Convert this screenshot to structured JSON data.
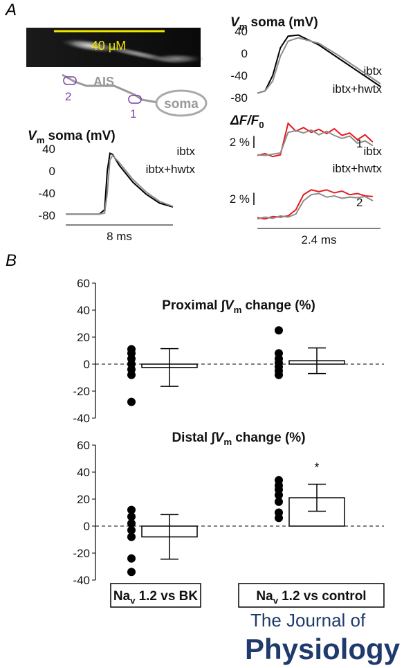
{
  "panel_labels": [
    "A",
    "B"
  ],
  "image": {
    "scale_label": "40 μM"
  },
  "diagram": {
    "region": "AIS",
    "sites": [
      "2",
      "1"
    ],
    "soma": "soma"
  },
  "chart_data": [
    {
      "type": "line",
      "title": {
        "symbol": "V",
        "subscript": "m",
        "text": "soma (mV)"
      },
      "x": [
        0,
        2.5,
        2.9,
        3.1,
        3.3,
        3.5,
        4,
        5,
        6,
        7,
        8
      ],
      "series": [
        {
          "name": "ibtx",
          "color": "#000000",
          "values": [
            -78,
            -78,
            -70,
            0,
            32,
            30,
            10,
            -20,
            -42,
            -58,
            -65
          ]
        },
        {
          "name": "ibtx+hwtx",
          "color": "#8c8c8c",
          "values": [
            -78,
            -78,
            -76,
            -40,
            20,
            28,
            15,
            -15,
            -38,
            -55,
            -64
          ]
        }
      ],
      "xlim": [
        0,
        8
      ],
      "ylim": [
        -80,
        40
      ],
      "yticks": [
        40,
        0,
        -40,
        -80
      ],
      "xscale": {
        "value": 8,
        "label": "8 ms"
      }
    },
    {
      "type": "line",
      "title": {
        "symbol": "V",
        "subscript": "m",
        "text": "soma (mV)"
      },
      "x": [
        0,
        0.15,
        0.3,
        0.45,
        0.6,
        0.8,
        1.2,
        1.6,
        2.0,
        2.4
      ],
      "series": [
        {
          "name": "ibtx",
          "color": "#000000",
          "values": [
            -72,
            -68,
            -40,
            10,
            31,
            33,
            15,
            -10,
            -35,
            -60
          ]
        },
        {
          "name": "ibtx+hwtx",
          "color": "#8c8c8c",
          "values": [
            -72,
            -68,
            -50,
            -5,
            22,
            28,
            18,
            -5,
            -30,
            -55
          ]
        }
      ],
      "xlim": [
        0,
        2.4
      ],
      "ylim": [
        -80,
        40
      ],
      "yticks": [
        40,
        0,
        -40,
        -80
      ]
    },
    {
      "type": "line",
      "ylabel": {
        "text": "ΔF/F",
        "subscript": "0"
      },
      "x": [
        0,
        0.15,
        0.3,
        0.45,
        0.6,
        0.75,
        0.9,
        1.05,
        1.2,
        1.35,
        1.5,
        1.65,
        1.8,
        1.95,
        2.1,
        2.25
      ],
      "series": [
        {
          "name": "ibtx",
          "color": "#e8191e",
          "values": [
            0.2,
            0.5,
            0.0,
            0.3,
            5.5,
            4.2,
            4.8,
            4.0,
            4.5,
            3.8,
            4.6,
            3.5,
            3.9,
            2.8,
            3.6,
            2.4
          ]
        },
        {
          "name": "ibtx+hwtx",
          "color": "#8c8c8c",
          "values": [
            0.3,
            0.2,
            0.4,
            0.6,
            4.0,
            4.3,
            3.9,
            4.4,
            3.6,
            4.2,
            3.5,
            3.0,
            3.4,
            2.2,
            2.6,
            1.8
          ]
        }
      ],
      "xlim": [
        0,
        2.4
      ],
      "ylim": [
        -1,
        7
      ],
      "scalebar": {
        "value": 2,
        "label": "2 %"
      },
      "site": "1"
    },
    {
      "type": "line",
      "x": [
        0,
        0.15,
        0.3,
        0.45,
        0.6,
        0.75,
        0.9,
        1.05,
        1.2,
        1.35,
        1.5,
        1.65,
        1.8,
        1.95,
        2.1,
        2.25
      ],
      "series": [
        {
          "color": "#e8191e",
          "values": [
            0.2,
            0.0,
            0.4,
            0.3,
            0.5,
            1.5,
            4.0,
            4.8,
            4.5,
            4.8,
            4.3,
            4.6,
            4.0,
            4.2,
            3.8,
            3.7
          ]
        },
        {
          "color": "#8c8c8c",
          "values": [
            0.0,
            0.3,
            0.1,
            0.5,
            0.3,
            0.8,
            3.0,
            4.0,
            4.2,
            3.6,
            3.8,
            3.4,
            3.6,
            3.5,
            3.7,
            3.0
          ]
        }
      ],
      "xlim": [
        0,
        2.4
      ],
      "ylim": [
        -1,
        7
      ],
      "scalebar": {
        "value": 2,
        "label": "2 %"
      },
      "site": "2",
      "xscale": {
        "value": 2.4,
        "label": "2.4 ms"
      }
    },
    {
      "type": "bar",
      "title": {
        "prefix": "Proximal ∫",
        "symbol": "V",
        "subscript": "m",
        "text": "change (%)"
      },
      "categories": [
        null,
        null
      ],
      "values": [
        -2.5,
        2.5
      ],
      "errors": [
        14,
        9.5
      ],
      "points": [
        [
          11,
          8,
          4,
          0,
          -4,
          -8,
          -28
        ],
        [
          25,
          8,
          4,
          1,
          -2,
          -5,
          -8
        ]
      ],
      "ylim": [
        -40,
        60
      ],
      "yticks": [
        -40,
        -20,
        0,
        20,
        40,
        60
      ]
    },
    {
      "type": "bar",
      "title": {
        "prefix": "Distal ∫",
        "symbol": "V",
        "subscript": "m",
        "text": "change (%)"
      },
      "categories": [
        {
          "prefix": "Na",
          "subscript": "v",
          "text": "1.2 vs BK"
        },
        {
          "prefix": "Na",
          "subscript": "v",
          "text": "1.2 vs control"
        }
      ],
      "values": [
        -8,
        21
      ],
      "errors": [
        16.5,
        10
      ],
      "points": [
        [
          12,
          7,
          2,
          -3,
          -8,
          -24,
          -34
        ],
        [
          34,
          30,
          27,
          23,
          18,
          10,
          6
        ]
      ],
      "ylim": [
        -40,
        60
      ],
      "yticks": [
        -40,
        -20,
        0,
        20,
        40,
        60
      ],
      "annotation": "*"
    }
  ],
  "footer": {
    "line1": "The Journal of",
    "line2": "Physiology"
  }
}
